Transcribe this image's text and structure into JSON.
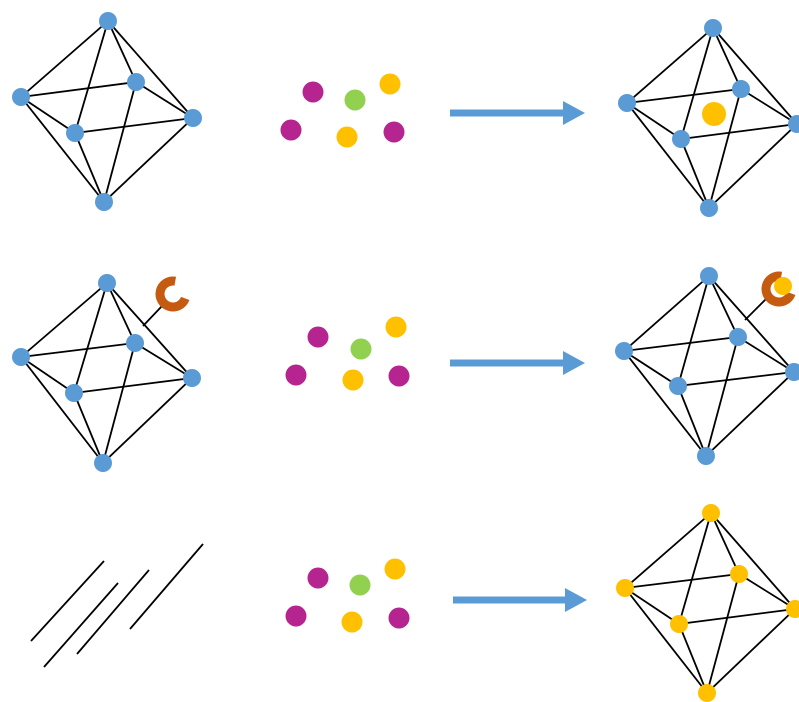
{
  "colors": {
    "node_blue": "#5B9BD5",
    "node_gold": "#FFC000",
    "ion_magenta": "#B5248F",
    "ion_green": "#92D050",
    "ion_gold": "#FFC000",
    "arrow": "#5B9BD5",
    "receptor": "#C55A11",
    "edge": "#000000"
  },
  "rows": [
    {
      "id": "row-1",
      "left": {
        "kind": "octahedron",
        "node_color": "node_blue"
      },
      "mixture": [
        "ion_magenta",
        "ion_green",
        "ion_gold",
        "ion_magenta",
        "ion_gold",
        "ion_magenta"
      ],
      "right": {
        "kind": "octahedron",
        "node_color": "node_blue",
        "encapsulated": "ion_gold"
      }
    },
    {
      "id": "row-2",
      "left": {
        "kind": "octahedron",
        "node_color": "node_blue",
        "receptor": true
      },
      "mixture": [
        "ion_magenta",
        "ion_green",
        "ion_gold",
        "ion_magenta",
        "ion_gold",
        "ion_magenta"
      ],
      "right": {
        "kind": "octahedron",
        "node_color": "node_blue",
        "receptor": true,
        "bound": "ion_gold"
      }
    },
    {
      "id": "row-3",
      "left": {
        "kind": "disordered-fragments"
      },
      "mixture": [
        "ion_magenta",
        "ion_green",
        "ion_gold",
        "ion_magenta",
        "ion_gold",
        "ion_magenta"
      ],
      "right": {
        "kind": "octahedron",
        "node_color": "node_gold"
      }
    }
  ]
}
